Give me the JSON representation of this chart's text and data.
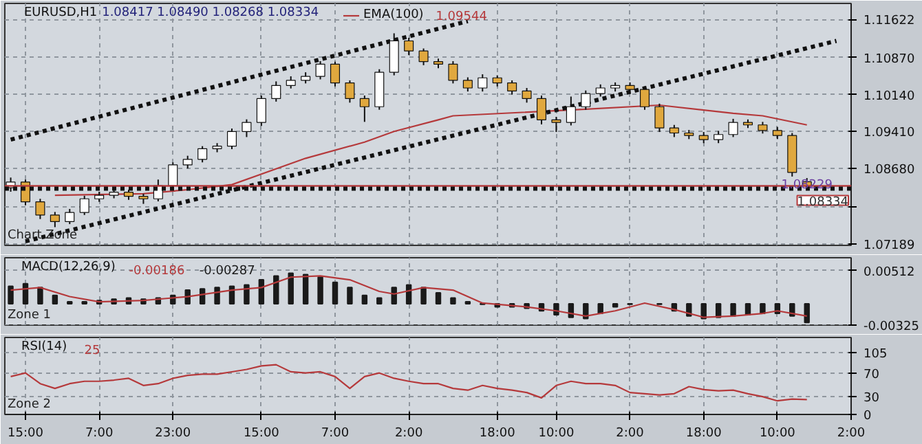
{
  "chart_data": [
    {
      "type": "candlestick",
      "title": "EURUSD,H1",
      "subtitle": "1.08417 1.08490 1.08268 1.08334",
      "categories": [
        null,
        null,
        null,
        null,
        null,
        null,
        null,
        null,
        null,
        null,
        null,
        null,
        null,
        null,
        null,
        null,
        null,
        null,
        null,
        null,
        null,
        null,
        null,
        null,
        null,
        null,
        null,
        null,
        null,
        null,
        null,
        null,
        null,
        null,
        null,
        null,
        null,
        null,
        null,
        null,
        null,
        null,
        null,
        null,
        null,
        null,
        null,
        null,
        null,
        null,
        null,
        null,
        null,
        null,
        null,
        null,
        null,
        null
      ],
      "ohlc": [
        [
          1.083,
          1.085,
          1.0822,
          1.0841
        ],
        [
          1.0841,
          1.0846,
          1.0795,
          1.0802
        ],
        [
          1.0802,
          1.0808,
          1.0768,
          1.0776
        ],
        [
          1.0776,
          1.0782,
          1.0752,
          1.0763
        ],
        [
          1.0763,
          1.0788,
          1.0758,
          1.0781
        ],
        [
          1.0781,
          1.0814,
          1.0776,
          1.0808
        ],
        [
          1.0808,
          1.0822,
          1.0802,
          1.0815
        ],
        [
          1.0815,
          1.0828,
          1.0809,
          1.0821
        ],
        [
          1.0821,
          1.0826,
          1.0806,
          1.0813
        ],
        [
          1.0813,
          1.0818,
          1.0798,
          1.0808
        ],
        [
          1.0808,
          1.0846,
          1.0803,
          1.0834
        ],
        [
          1.0834,
          1.088,
          1.0829,
          1.0875
        ],
        [
          1.0875,
          1.0893,
          1.0868,
          1.0886
        ],
        [
          1.0886,
          1.0912,
          1.088,
          1.0907
        ],
        [
          1.0907,
          1.0918,
          1.09,
          1.0912
        ],
        [
          1.0912,
          1.0947,
          1.0906,
          1.0941
        ],
        [
          1.0941,
          1.0965,
          1.093,
          1.0959
        ],
        [
          1.0959,
          1.1012,
          1.0952,
          1.1006
        ],
        [
          1.1006,
          1.104,
          1.1,
          1.1032
        ],
        [
          1.1032,
          1.105,
          1.1026,
          1.1042
        ],
        [
          1.1042,
          1.1058,
          1.1036,
          1.105
        ],
        [
          1.105,
          1.108,
          1.1044,
          1.1074
        ],
        [
          1.1074,
          1.1079,
          1.103,
          1.1037
        ],
        [
          1.1037,
          1.1042,
          1.0998,
          1.1006
        ],
        [
          1.1006,
          1.1012,
          1.096,
          1.099
        ],
        [
          1.099,
          1.1064,
          1.0984,
          1.1058
        ],
        [
          1.1058,
          1.1135,
          1.1052,
          1.112
        ],
        [
          1.112,
          1.1126,
          1.1092,
          1.11
        ],
        [
          1.11,
          1.1105,
          1.1072,
          1.1079
        ],
        [
          1.1079,
          1.1085,
          1.1066,
          1.1074
        ],
        [
          1.1074,
          1.108,
          1.1036,
          1.1042
        ],
        [
          1.1042,
          1.1048,
          1.102,
          1.1027
        ],
        [
          1.1027,
          1.1054,
          1.102,
          1.1047
        ],
        [
          1.1047,
          1.1052,
          1.103,
          1.1037
        ],
        [
          1.1037,
          1.1042,
          1.1014,
          1.1021
        ],
        [
          1.1021,
          1.1027,
          1.0998,
          1.1006
        ],
        [
          1.1006,
          1.1012,
          1.0955,
          1.0964
        ],
        [
          1.0964,
          1.097,
          1.094,
          1.0959
        ],
        [
          1.0959,
          1.101,
          1.0953,
          1.099
        ],
        [
          1.099,
          1.1022,
          1.0984,
          1.1016
        ],
        [
          1.1016,
          1.1034,
          1.101,
          1.1027
        ],
        [
          1.1027,
          1.1038,
          1.102,
          1.1032
        ],
        [
          1.1032,
          1.1038,
          1.1018,
          1.1024
        ],
        [
          1.1024,
          1.103,
          1.0984,
          1.099
        ],
        [
          1.099,
          1.0996,
          1.094,
          1.0948
        ],
        [
          1.0948,
          1.0954,
          1.093,
          1.0938
        ],
        [
          1.0938,
          1.0944,
          1.0926,
          1.0933
        ],
        [
          1.0933,
          1.094,
          1.0918,
          1.0925
        ],
        [
          1.0925,
          1.0942,
          1.0918,
          1.0935
        ],
        [
          1.0935,
          1.0966,
          1.093,
          1.0959
        ],
        [
          1.0959,
          1.0965,
          1.0948,
          1.0954
        ],
        [
          1.0954,
          1.096,
          1.0937,
          1.0943
        ],
        [
          1.0943,
          1.095,
          1.0926,
          1.0933
        ],
        [
          1.0933,
          1.0938,
          1.0852,
          1.086
        ],
        [
          1.08417,
          1.0849,
          1.08268,
          1.08334
        ],
        null,
        null,
        null
      ],
      "series": [
        {
          "name": "EMA(100)",
          "type": "line",
          "color": "#b5393b",
          "values": [
            null,
            null,
            null,
            1.0815,
            null,
            null,
            null,
            null,
            null,
            1.0818,
            null,
            null,
            1.0826,
            null,
            null,
            1.0836,
            null,
            null,
            null,
            null,
            1.0888,
            null,
            null,
            null,
            1.092,
            null,
            1.0941,
            null,
            null,
            1.0964,
            1.0972,
            null,
            null,
            null,
            null,
            null,
            null,
            null,
            null,
            1.0985,
            null,
            null,
            null,
            null,
            1.0993,
            null,
            null,
            null,
            null,
            1.0977,
            null,
            1.0972,
            null,
            null,
            1.0954,
            null,
            null,
            null
          ]
        },
        {
          "type": "line",
          "color": "#111111",
          "line_style": "dotted",
          "values": [
            1.0925,
            null,
            null,
            null,
            null,
            null,
            null,
            null,
            null,
            null,
            null,
            null,
            null,
            null,
            null,
            null,
            null,
            null,
            null,
            null,
            null,
            null,
            null,
            null,
            null,
            null,
            null,
            null,
            null,
            null,
            null,
            1.1159,
            null,
            null,
            null,
            null,
            null,
            null,
            null,
            null,
            null,
            null,
            null,
            null,
            null,
            null,
            null,
            null,
            null,
            null,
            null,
            null,
            null,
            null,
            null,
            null,
            null,
            null
          ]
        },
        {
          "type": "line",
          "color": "#111111",
          "line_style": "dotted",
          "values": [
            null,
            1.0724,
            null,
            null,
            null,
            null,
            null,
            null,
            null,
            null,
            null,
            null,
            null,
            null,
            null,
            null,
            null,
            null,
            null,
            null,
            null,
            null,
            null,
            null,
            null,
            null,
            null,
            null,
            null,
            null,
            null,
            null,
            null,
            null,
            null,
            null,
            null,
            null,
            null,
            null,
            null,
            null,
            null,
            null,
            null,
            null,
            null,
            null,
            null,
            null,
            null,
            null,
            null,
            null,
            null,
            null,
            1.112,
            null
          ]
        }
      ],
      "ref_lines": [
        {
          "axis": "y",
          "value": 1.08334,
          "label": "1.08334",
          "color": "#b5393b",
          "line_style": "solid"
        },
        {
          "axis": "y",
          "value": 1.0828,
          "color": "#111111",
          "line_style": "dotted"
        }
      ],
      "annotations": [
        "1.09544",
        {
          "text": "1.08229",
          "y": 1.08229
        },
        "Chart Zone"
      ],
      "ylim": [
        1.0716,
        1.1194
      ],
      "yticks": [
        {
          "value": 1.07189,
          "label": "1.07189"
        },
        {
          "value": 1.0792,
          "label": null
        },
        {
          "value": 1.0868,
          "label": "1.08680"
        },
        {
          "value": 1.0941,
          "label": "1.09410"
        },
        {
          "value": 1.1014,
          "label": "1.10140"
        },
        {
          "value": 1.1087,
          "label": "1.10870"
        },
        {
          "value": 1.11622,
          "label": "1.11622"
        }
      ],
      "tick_labels": "y",
      "grid": true,
      "legend": "top left"
    },
    {
      "type": "bar",
      "title": "MACD(12,26,9)",
      "categories": [
        null,
        null,
        null,
        null,
        null,
        null,
        null,
        null,
        null,
        null,
        null,
        null,
        null,
        null,
        null,
        null,
        null,
        null,
        null,
        null,
        null,
        null,
        null,
        null,
        null,
        null,
        null,
        null,
        null,
        null,
        null,
        null,
        null,
        null,
        null,
        null,
        null,
        null,
        null,
        null,
        null,
        null,
        null,
        null,
        null,
        null,
        null,
        null,
        null,
        null,
        null,
        null,
        null,
        null,
        null,
        null,
        null,
        null
      ],
      "series": [
        {
          "type": "line",
          "color": "#b5393b",
          "values": [
            0.0021,
            null,
            0.0025,
            null,
            0.0011,
            null,
            0.0003,
            null,
            null,
            0.0005,
            null,
            null,
            0.0011,
            null,
            null,
            0.0021,
            null,
            0.0025,
            null,
            0.0041,
            null,
            0.0043,
            null,
            0.0037,
            null,
            0.0019,
            0.0015,
            null,
            0.0025,
            null,
            0.0021,
            null,
            0.0001,
            null,
            null,
            -0.0005,
            null,
            -0.0011,
            null,
            -0.0019,
            null,
            -0.0011,
            null,
            0.0001,
            null,
            -0.0009,
            null,
            -0.0021,
            null,
            -0.0019,
            null,
            -0.0015,
            -0.0011,
            null,
            -0.0019,
            null,
            null,
            null
          ]
        },
        {
          "type": "bar",
          "color": "#1a1a1a",
          "values": [
            0.0027,
            0.0031,
            0.0025,
            0.0013,
            0.0003,
            0.0003,
            0.0005,
            0.0007,
            0.0009,
            0.0007,
            0.0009,
            0.0013,
            0.0021,
            0.0023,
            0.0025,
            0.0027,
            0.0029,
            0.0037,
            0.0043,
            0.0047,
            0.0045,
            0.0041,
            0.0033,
            0.0025,
            0.0013,
            0.0009,
            0.0025,
            0.0029,
            0.0025,
            0.0017,
            0.0009,
            0.0003,
            -0.0001,
            -0.0005,
            -0.0005,
            -0.0007,
            -0.0011,
            -0.0017,
            -0.0021,
            -0.0023,
            -0.0015,
            -0.0005,
            -0.0001,
            null,
            -0.0001,
            -0.0011,
            -0.0019,
            -0.0023,
            -0.0021,
            -0.0019,
            -0.0017,
            -0.0015,
            -0.0015,
            -0.0019,
            -0.0029,
            null,
            null,
            null
          ]
        }
      ],
      "annotations": [
        "-0.00186",
        "-0.00287",
        "Zone 1"
      ],
      "ylim": [
        -0.0033,
        0.0071
      ],
      "yticks": [
        0.00512,
        -0.00325
      ],
      "tick_labels": "y",
      "grid": true
    },
    {
      "type": "line",
      "title": "RSI(14)",
      "categories": [
        null,
        "15:00",
        null,
        null,
        null,
        null,
        "7:00",
        null,
        null,
        null,
        null,
        "23:00",
        null,
        null,
        null,
        null,
        null,
        "15:00",
        null,
        null,
        null,
        null,
        "7:00",
        null,
        null,
        null,
        null,
        "2:00",
        null,
        null,
        null,
        null,
        null,
        "18:00",
        null,
        null,
        null,
        "10:00",
        null,
        null,
        null,
        null,
        "2:00",
        null,
        null,
        null,
        null,
        "18:00",
        null,
        null,
        null,
        null,
        "10:00",
        null,
        null,
        null,
        null,
        "2:00"
      ],
      "series": [
        {
          "color": "#b5393b",
          "values": [
            64,
            70,
            52,
            44,
            52,
            56,
            56,
            58,
            61,
            49,
            52,
            61,
            66,
            68,
            68,
            72,
            76,
            82,
            84,
            72,
            70,
            72,
            64,
            44,
            64,
            70,
            61,
            56,
            52,
            52,
            44,
            41,
            49,
            44,
            41,
            37,
            28,
            49,
            56,
            52,
            52,
            49,
            37,
            35,
            33,
            35,
            47,
            42,
            40,
            41,
            35,
            30,
            23,
            26,
            25,
            null,
            null,
            null
          ]
        }
      ],
      "annotations": [
        "25",
        "Zone 2"
      ],
      "ylim": [
        0,
        130
      ],
      "yticks": [
        105,
        70,
        30,
        0
      ],
      "grid": true
    }
  ]
}
